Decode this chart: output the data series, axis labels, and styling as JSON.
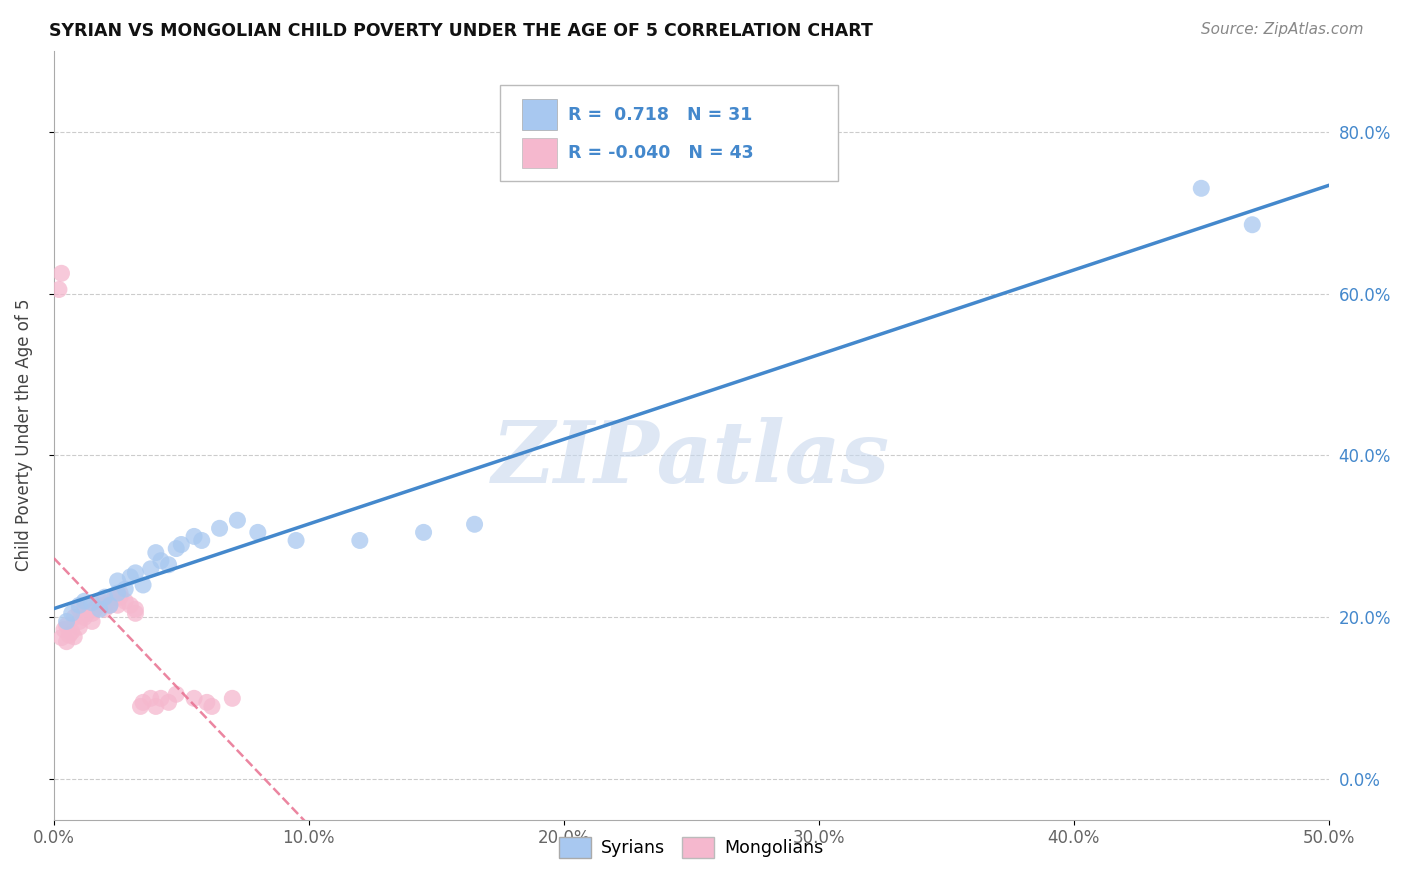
{
  "title": "SYRIAN VS MONGOLIAN CHILD POVERTY UNDER THE AGE OF 5 CORRELATION CHART",
  "source": "Source: ZipAtlas.com",
  "ylabel": "Child Poverty Under the Age of 5",
  "xlim": [
    0,
    0.5
  ],
  "ylim": [
    -0.05,
    0.9
  ],
  "ytick_vals": [
    0.0,
    0.2,
    0.4,
    0.6,
    0.8
  ],
  "ytick_labels": [
    "0.0%",
    "20.0%",
    "40.0%",
    "60.0%",
    "80.0%"
  ],
  "xtick_vals": [
    0.0,
    0.1,
    0.2,
    0.3,
    0.4,
    0.5
  ],
  "xtick_labels": [
    "0.0%",
    "10.0%",
    "20.0%",
    "30.0%",
    "40.0%",
    "50.0%"
  ],
  "syrian_color": "#a8c8f0",
  "mongolian_color": "#f5b8ce",
  "syrian_line_color": "#4488cc",
  "mongolian_line_color": "#e87090",
  "R_syrian": 0.718,
  "N_syrian": 31,
  "R_mongolian": -0.04,
  "N_mongolian": 43,
  "legend_label_syrian": "Syrians",
  "legend_label_mongolian": "Mongolians",
  "watermark": "ZIPatlas",
  "background_color": "#ffffff",
  "grid_color": "#cccccc",
  "syrian_x": [
    0.005,
    0.007,
    0.01,
    0.012,
    0.015,
    0.018,
    0.02,
    0.022,
    0.025,
    0.025,
    0.028,
    0.03,
    0.032,
    0.035,
    0.038,
    0.04,
    0.042,
    0.045,
    0.048,
    0.05,
    0.055,
    0.058,
    0.065,
    0.072,
    0.08,
    0.095,
    0.12,
    0.145,
    0.165,
    0.45,
    0.47
  ],
  "syrian_y": [
    0.195,
    0.205,
    0.215,
    0.22,
    0.218,
    0.21,
    0.225,
    0.215,
    0.23,
    0.245,
    0.235,
    0.25,
    0.255,
    0.24,
    0.26,
    0.28,
    0.27,
    0.265,
    0.285,
    0.29,
    0.3,
    0.295,
    0.31,
    0.32,
    0.305,
    0.295,
    0.295,
    0.305,
    0.315,
    0.73,
    0.685
  ],
  "mongolian_x": [
    0.002,
    0.003,
    0.003,
    0.004,
    0.005,
    0.005,
    0.006,
    0.007,
    0.008,
    0.008,
    0.01,
    0.01,
    0.01,
    0.012,
    0.012,
    0.013,
    0.015,
    0.015,
    0.016,
    0.018,
    0.018,
    0.02,
    0.022,
    0.022,
    0.024,
    0.025,
    0.026,
    0.026,
    0.028,
    0.03,
    0.032,
    0.032,
    0.034,
    0.035,
    0.038,
    0.04,
    0.042,
    0.045,
    0.048,
    0.055,
    0.06,
    0.062,
    0.07
  ],
  "mongolian_y": [
    0.605,
    0.625,
    0.175,
    0.185,
    0.17,
    0.19,
    0.178,
    0.182,
    0.176,
    0.2,
    0.188,
    0.195,
    0.21,
    0.2,
    0.215,
    0.205,
    0.195,
    0.205,
    0.21,
    0.215,
    0.22,
    0.21,
    0.215,
    0.22,
    0.225,
    0.215,
    0.23,
    0.225,
    0.22,
    0.215,
    0.205,
    0.21,
    0.09,
    0.095,
    0.1,
    0.09,
    0.1,
    0.095,
    0.105,
    0.1,
    0.095,
    0.09,
    0.1
  ]
}
